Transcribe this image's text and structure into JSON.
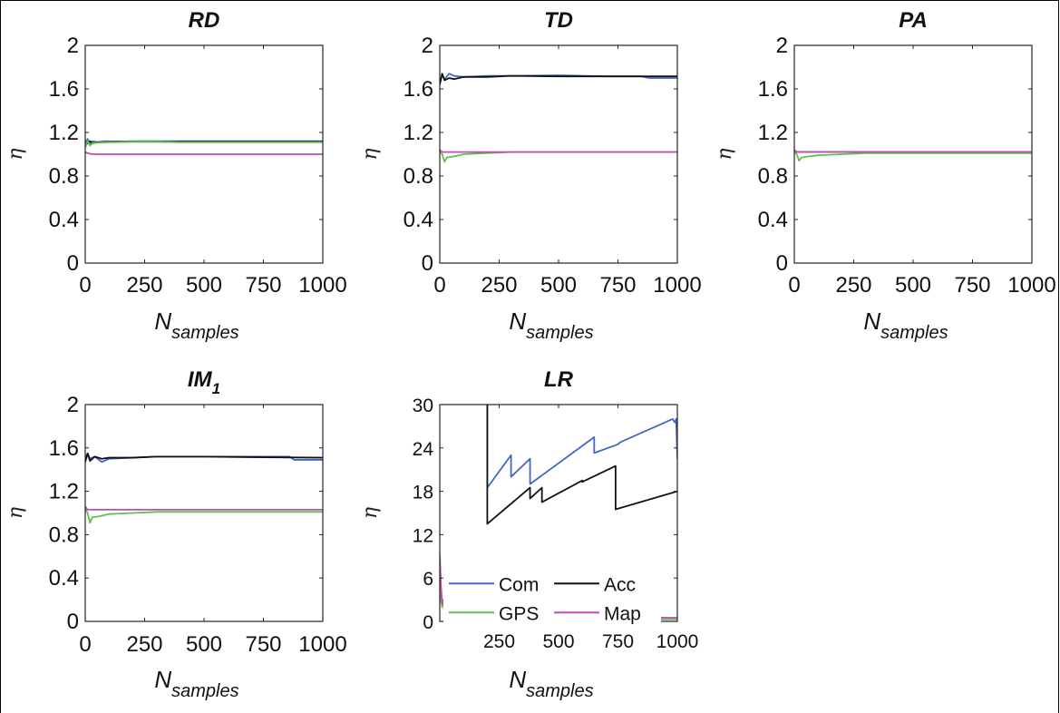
{
  "colors": {
    "Com": "#4169c4",
    "Acc": "#111111",
    "GPS": "#63c04a",
    "Map": "#c04cb8"
  },
  "chart_data": [
    {
      "type": "line",
      "title": "RD",
      "ylabel": "η",
      "xlabel": {
        "base": "N",
        "sub": "samples"
      },
      "xlim": [
        0,
        1000
      ],
      "ylim": [
        0,
        2
      ],
      "xticks": [
        "0",
        "250",
        "500",
        "750",
        "1000"
      ],
      "yticks": [
        "0",
        "0.4",
        "0.8",
        "1.2",
        "1.6",
        "2"
      ],
      "series": [
        {
          "key": "Com",
          "x": [
            0,
            10,
            20,
            30,
            50,
            80,
            120,
            200,
            300,
            400,
            500,
            600,
            700,
            800,
            900,
            1000
          ],
          "y": [
            1.1,
            1.14,
            1.09,
            1.12,
            1.11,
            1.12,
            1.115,
            1.12,
            1.12,
            1.12,
            1.12,
            1.12,
            1.12,
            1.12,
            1.12,
            1.12
          ]
        },
        {
          "key": "Acc",
          "x": [
            0,
            10,
            20,
            30,
            50,
            80,
            120,
            200,
            300,
            400,
            500,
            600,
            700,
            800,
            900,
            1000
          ],
          "y": [
            1.08,
            1.1,
            1.12,
            1.1,
            1.11,
            1.11,
            1.115,
            1.115,
            1.115,
            1.115,
            1.115,
            1.115,
            1.115,
            1.115,
            1.115,
            1.115
          ]
        },
        {
          "key": "GPS",
          "x": [
            0,
            10,
            20,
            30,
            50,
            80,
            120,
            200,
            300,
            400,
            500,
            600,
            700,
            800,
            900,
            1000
          ],
          "y": [
            1.06,
            1.12,
            1.08,
            1.1,
            1.105,
            1.11,
            1.11,
            1.115,
            1.115,
            1.11,
            1.11,
            1.11,
            1.11,
            1.11,
            1.11,
            1.11
          ]
        },
        {
          "key": "Map",
          "x": [
            0,
            10,
            30,
            100,
            500,
            1000
          ],
          "y": [
            1.02,
            1.01,
            1.0,
            1.0,
            1.0,
            1.0
          ]
        }
      ]
    },
    {
      "type": "line",
      "title": "TD",
      "ylabel": "η",
      "xlabel": {
        "base": "N",
        "sub": "samples"
      },
      "xlim": [
        0,
        1000
      ],
      "ylim": [
        0,
        2
      ],
      "xticks": [
        "0",
        "250",
        "500",
        "750",
        "1000"
      ],
      "yticks": [
        "0",
        "0.4",
        "0.8",
        "1.2",
        "1.6",
        "2"
      ],
      "series": [
        {
          "key": "Com",
          "x": [
            0,
            10,
            20,
            40,
            60,
            100,
            200,
            300,
            500,
            700,
            850,
            880,
            1000
          ],
          "y": [
            1.66,
            1.73,
            1.69,
            1.74,
            1.72,
            1.71,
            1.72,
            1.72,
            1.725,
            1.715,
            1.715,
            1.7,
            1.7
          ]
        },
        {
          "key": "Acc",
          "x": [
            0,
            10,
            20,
            40,
            60,
            100,
            200,
            300,
            500,
            700,
            1000
          ],
          "y": [
            1.64,
            1.74,
            1.68,
            1.7,
            1.69,
            1.71,
            1.71,
            1.72,
            1.715,
            1.715,
            1.715
          ]
        },
        {
          "key": "GPS",
          "x": [
            0,
            10,
            20,
            30,
            60,
            100,
            200,
            300,
            500,
            1000
          ],
          "y": [
            1.02,
            1.0,
            0.93,
            0.97,
            0.98,
            1.0,
            1.01,
            1.02,
            1.02,
            1.02
          ]
        },
        {
          "key": "Map",
          "x": [
            0,
            10,
            30,
            100,
            500,
            1000
          ],
          "y": [
            1.04,
            1.02,
            1.02,
            1.02,
            1.02,
            1.02
          ]
        }
      ]
    },
    {
      "type": "line",
      "title": "PA",
      "ylabel": "η",
      "xlabel": {
        "base": "N",
        "sub": "samples"
      },
      "xlim": [
        0,
        1000
      ],
      "ylim": [
        0,
        2
      ],
      "xticks": [
        "0",
        "250",
        "500",
        "750",
        "1000"
      ],
      "yticks": [
        "0",
        "0.4",
        "0.8",
        "1.2",
        "1.6",
        "2"
      ],
      "series": [
        {
          "key": "Com",
          "x": [
            0,
            100,
            500,
            1000
          ],
          "y": [
            1.02,
            1.02,
            1.02,
            1.02
          ]
        },
        {
          "key": "Acc",
          "x": [
            0,
            100,
            500,
            1000
          ],
          "y": [
            1.02,
            1.02,
            1.02,
            1.02
          ]
        },
        {
          "key": "GPS",
          "x": [
            0,
            10,
            20,
            30,
            60,
            100,
            200,
            300,
            500,
            1000
          ],
          "y": [
            1.02,
            1.0,
            0.94,
            0.97,
            0.98,
            0.99,
            1.0,
            1.01,
            1.01,
            1.01
          ]
        },
        {
          "key": "Map",
          "x": [
            0,
            10,
            30,
            100,
            500,
            1000
          ],
          "y": [
            1.04,
            1.02,
            1.02,
            1.02,
            1.02,
            1.02
          ]
        }
      ]
    },
    {
      "type": "line",
      "title": "IM",
      "title_sub": "1",
      "ylabel": "η",
      "xlabel": {
        "base": "N",
        "sub": "samples"
      },
      "xlim": [
        0,
        1000
      ],
      "ylim": [
        0,
        2
      ],
      "xticks": [
        "0",
        "250",
        "500",
        "750",
        "1000"
      ],
      "yticks": [
        "0",
        "0.4",
        "0.8",
        "1.2",
        "1.6",
        "2"
      ],
      "series": [
        {
          "key": "Com",
          "x": [
            0,
            10,
            20,
            40,
            70,
            100,
            200,
            300,
            500,
            700,
            860,
            880,
            1000
          ],
          "y": [
            1.5,
            1.55,
            1.5,
            1.52,
            1.47,
            1.5,
            1.51,
            1.52,
            1.52,
            1.52,
            1.52,
            1.49,
            1.49
          ]
        },
        {
          "key": "Acc",
          "x": [
            0,
            10,
            20,
            40,
            70,
            100,
            200,
            300,
            500,
            700,
            1000
          ],
          "y": [
            1.47,
            1.55,
            1.48,
            1.52,
            1.5,
            1.51,
            1.51,
            1.52,
            1.52,
            1.515,
            1.51
          ]
        },
        {
          "key": "GPS",
          "x": [
            0,
            10,
            20,
            30,
            60,
            100,
            200,
            300,
            500,
            1000
          ],
          "y": [
            1.04,
            1.0,
            0.91,
            0.96,
            0.97,
            0.99,
            1.0,
            1.01,
            1.01,
            1.01
          ]
        },
        {
          "key": "Map",
          "x": [
            0,
            10,
            30,
            100,
            500,
            1000
          ],
          "y": [
            1.06,
            1.03,
            1.03,
            1.03,
            1.03,
            1.03
          ]
        }
      ]
    },
    {
      "type": "line",
      "title": "LR",
      "ylabel": "η",
      "xlabel": {
        "base": "N",
        "sub": "samples"
      },
      "xlim": [
        0,
        1000
      ],
      "ylim": [
        0,
        30
      ],
      "xticks": [
        "250",
        "500",
        "750",
        "1000"
      ],
      "yticks": [
        "0",
        "6",
        "12",
        "18",
        "24",
        "30"
      ],
      "legend": {
        "position": "bottom-left",
        "entries": [
          "Com",
          "Acc",
          "GPS",
          "Map"
        ]
      },
      "series": [
        {
          "key": "Com",
          "x": [
            200,
            200,
            300,
            300,
            380,
            380,
            650,
            650,
            750,
            760,
            980,
            990,
            995,
            1000
          ],
          "y": [
            30,
            18.5,
            23.0,
            20.0,
            22.5,
            19.0,
            25.5,
            23.3,
            24.5,
            24.8,
            28.0,
            27.5,
            28.0,
            22.5
          ]
        },
        {
          "key": "Acc",
          "x": [
            200,
            200,
            380,
            380,
            430,
            430,
            600,
            600,
            740,
            740,
            1000
          ],
          "y": [
            30,
            13.5,
            18.5,
            17.0,
            18.5,
            16.5,
            19.5,
            19.3,
            21.5,
            15.5,
            18.0
          ]
        },
        {
          "key": "GPS",
          "x": [
            0,
            5,
            10,
            15,
            20,
            30,
            40,
            60,
            100,
            300,
            500,
            700,
            1000
          ],
          "y": [
            9.5,
            3.0,
            2.0,
            2.6,
            1.0,
            1.4,
            0.5,
            0.3,
            0.2,
            0.2,
            0.2,
            0.2,
            0.3
          ]
        },
        {
          "key": "Map",
          "x": [
            0,
            5,
            10,
            15,
            20,
            25,
            40,
            60,
            100,
            200,
            300,
            450,
            460,
            600,
            1000
          ],
          "y": [
            9.0,
            5.0,
            2.5,
            3.0,
            1.5,
            2.0,
            0.6,
            0.4,
            0.5,
            0.7,
            0.9,
            1.0,
            0.7,
            0.6,
            0.5
          ]
        }
      ]
    }
  ]
}
